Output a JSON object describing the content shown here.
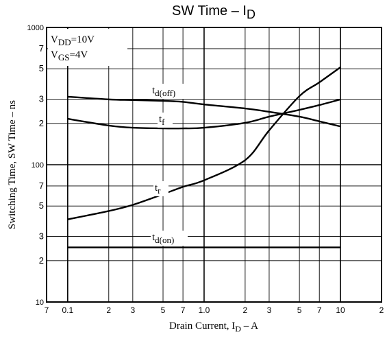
{
  "chart_data": {
    "type": "line",
    "title": [
      "SW Time  –  I",
      "D"
    ],
    "x_label": [
      "Drain Current, I",
      "D",
      "  –  A"
    ],
    "y_label": "Switching Time, SW Time  –  ns",
    "annotations": [
      [
        "V",
        "DD",
        "=10V"
      ],
      [
        "V",
        "GS",
        "=4V"
      ]
    ],
    "log_x": true,
    "log_y": true,
    "grid": true,
    "xlim": [
      0.07,
      20
    ],
    "ylim": [
      10,
      1000
    ],
    "xticks": [
      {
        "value": 0.07,
        "label": "7"
      },
      0.1,
      {
        "value": 0.2,
        "label": "2"
      },
      {
        "value": 0.3,
        "label": "3"
      },
      {
        "value": 0.5,
        "label": "5"
      },
      {
        "value": 0.7,
        "label": "7"
      },
      {
        "value": 1,
        "label": "1.0"
      },
      2,
      3,
      5,
      7,
      10,
      {
        "value": 20,
        "label": "2"
      }
    ],
    "yticks": [
      10,
      {
        "value": 20,
        "label": "2"
      },
      {
        "value": 30,
        "label": "3"
      },
      {
        "value": 50,
        "label": "5"
      },
      {
        "value": 70,
        "label": "7"
      },
      100,
      {
        "value": 200,
        "label": "2"
      },
      {
        "value": 300,
        "label": "3"
      },
      {
        "value": 500,
        "label": "5"
      },
      {
        "value": 700,
        "label": "7"
      },
      1000
    ],
    "x": [
      0.1,
      0.2,
      0.3,
      0.5,
      0.7,
      1,
      2,
      3,
      5,
      7,
      10
    ],
    "series": [
      {
        "label": [
          "t",
          "d(off)"
        ],
        "color": "#000000",
        "values": [
          313,
          299,
          296,
          292,
          287,
          275,
          257,
          243,
          224,
          207,
          190
        ]
      },
      {
        "label": [
          "t",
          "f"
        ],
        "color": "#000000",
        "values": [
          216,
          193,
          186,
          184,
          184,
          186,
          202,
          224,
          251,
          272,
          299
        ]
      },
      {
        "label": [
          "t",
          "r"
        ],
        "color": "#000000",
        "values": [
          40,
          46,
          51,
          61,
          69,
          77,
          108,
          178,
          316,
          398,
          513
        ]
      },
      {
        "label": [
          "t",
          "d(on)"
        ],
        "color": "#000000",
        "values": [
          25,
          25,
          25,
          25,
          25,
          25,
          25,
          25,
          25,
          25,
          25
        ]
      }
    ]
  }
}
